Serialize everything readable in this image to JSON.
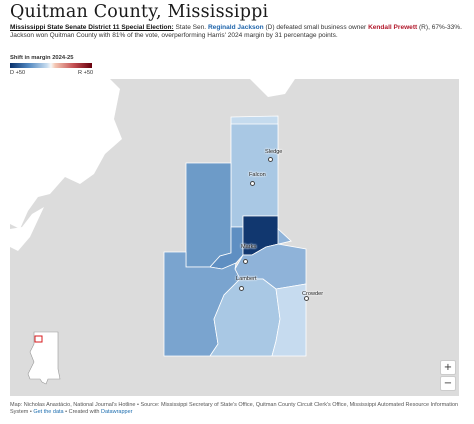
{
  "header": {
    "title": "Quitman County, Mississippi",
    "lead": "Mississippi State Senate District 11 Special Election:",
    "desc_1": " State Sen. ",
    "dem_name": "Reginald Jackson",
    "desc_2": " (D) defeated small business owner ",
    "rep_name": "Kendall Prewett",
    "desc_3": " (R), 67%-33%. Jackson won Quitman County with 81% of the vote, overperforming Harris' 2024 margin by 31 percentage points."
  },
  "legend": {
    "title": "Shift in margin 2024-25",
    "left_label": "D +50",
    "right_label": "R +50",
    "colors": [
      "#08306b",
      "#4f86bf",
      "#c7dcef",
      "#f7f7f7",
      "#f4c7b3",
      "#c44e52",
      "#67000d"
    ]
  },
  "map": {
    "places": [
      {
        "name": "Sledge"
      },
      {
        "name": "Falcon"
      },
      {
        "name": "Marks"
      },
      {
        "name": "Lambert"
      },
      {
        "name": "Crowder"
      }
    ],
    "zoom_in": "+",
    "zoom_out": "−",
    "precinct_colors": {
      "north_light": "#c5dbee",
      "north_mid": "#a9c8e4",
      "west": "#6d9bc8",
      "central_west": "#5f8fc2",
      "marks_dark": "#11376f",
      "marks_core": "#1e4e8c",
      "east": "#8fb3d9",
      "south_west": "#7aa4cf",
      "south_central": "#a9c8e4",
      "south_east": "#c6dbef"
    }
  },
  "footer": {
    "text": "Map: Nicholas Anastácio, National Journal's Hotline • Source: Mississippi Secretary of State's Office, Quitman County Circuit Clerk's Office, Mississippi Automated Resource Information System • ",
    "get_data": "Get the data",
    "sep": " • Created with ",
    "datawrapper": "Datawrapper"
  }
}
